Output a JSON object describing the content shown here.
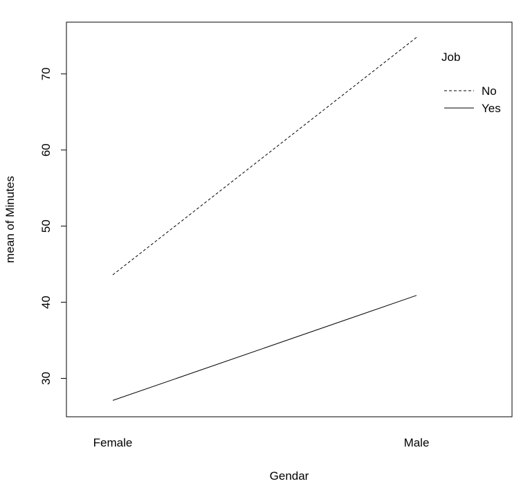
{
  "chart_data": {
    "type": "line",
    "title": "",
    "xlabel": "Gendar",
    "ylabel": "mean of  Minutes",
    "categories": [
      "Female",
      "Male"
    ],
    "y_ticks": [
      30,
      40,
      50,
      60,
      70
    ],
    "ylim": [
      24.95,
      76.8
    ],
    "grid": false,
    "legend": {
      "title": "Job",
      "position": "top-right"
    },
    "series": [
      {
        "name": "No",
        "line_style": "dashed",
        "values": [
          43.6,
          74.8
        ]
      },
      {
        "name": "Yes",
        "line_style": "solid",
        "values": [
          27.1,
          40.9
        ]
      }
    ],
    "line_color": "#000000"
  }
}
